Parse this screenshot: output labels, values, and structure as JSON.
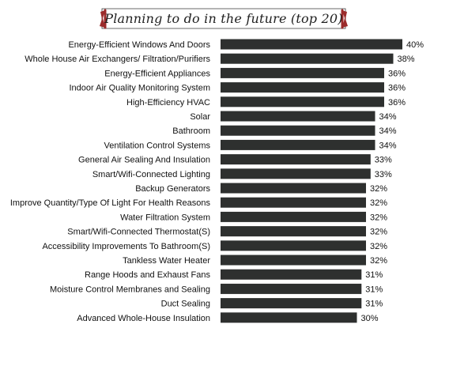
{
  "title": "Planning to do in the future (top 20)",
  "colors": {
    "bar": "#2e302f",
    "banner_accent": "#9b2b2b",
    "text": "#111111"
  },
  "chart_data": {
    "type": "bar",
    "orientation": "horizontal",
    "title": "Planning to do in the future (top 20)",
    "categories": [
      "Energy-Efficient Windows And Doors",
      "Whole House Air Exchangers/ Filtration/Purifiers",
      "Energy-Efficient Appliances",
      "Indoor Air Quality Monitoring System",
      "High-Efficiency HVAC",
      "Solar",
      "Bathroom",
      "Ventilation Control Systems",
      "General Air Sealing And Insulation",
      "Smart/Wifi-Connected Lighting",
      "Backup Generators",
      "Improve Quantity/Type Of Light For Health Reasons",
      "Water Filtration System",
      "Smart/Wifi-Connected Thermostat(S)",
      "Accessibility Improvements To Bathroom(S)",
      "Tankless Water Heater",
      "Range Hoods and Exhaust Fans",
      "Moisture Control Membranes and Sealing",
      "Duct Sealing",
      "Advanced Whole-House Insulation"
    ],
    "values": [
      40,
      38,
      36,
      36,
      36,
      34,
      34,
      34,
      33,
      33,
      32,
      32,
      32,
      32,
      32,
      32,
      31,
      31,
      31,
      30
    ],
    "value_labels": [
      "40%",
      "38%",
      "36%",
      "36%",
      "36%",
      "34%",
      "34%",
      "34%",
      "33%",
      "33%",
      "32%",
      "32%",
      "32%",
      "32%",
      "32%",
      "32%",
      "31%",
      "31%",
      "31%",
      "30%"
    ],
    "xlim": [
      0,
      40
    ],
    "grid": false,
    "legend": "none"
  }
}
